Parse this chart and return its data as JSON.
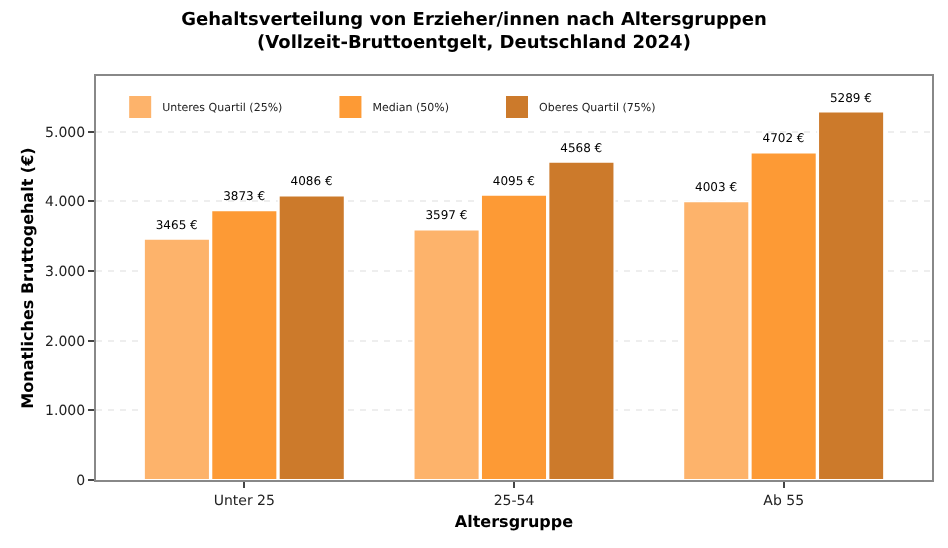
{
  "chart_data": {
    "type": "bar",
    "title": "Gehaltsverteilung von Erzieher/innen nach Altersgruppen\n(Vollzeit-Bruttoentgelt, Deutschland 2024)",
    "xlabel": "Altersgruppe",
    "ylabel": "Monatliches Bruttogehalt (€)",
    "categories": [
      "Unter 25",
      "25-54",
      "Ab 55"
    ],
    "series": [
      {
        "name": "Unteres Quartil (25%)",
        "color": "#fdb36b",
        "values": [
          3465,
          3597,
          4003
        ],
        "value_labels": [
          "3465 €",
          "3597 €",
          "4003 €"
        ]
      },
      {
        "name": "Median (50%)",
        "color": "#fd9a35",
        "values": [
          3873,
          4095,
          4702
        ],
        "value_labels": [
          "3873 €",
          "4095 €",
          "4702 €"
        ]
      },
      {
        "name": "Oberes Quartil (75%)",
        "color": "#cc7a2b",
        "values": [
          4086,
          4568,
          5289
        ],
        "value_labels": [
          "4086 €",
          "4568 €",
          "5289 €"
        ]
      }
    ],
    "ylim": [
      0,
      5800
    ],
    "yticks": [
      {
        "value": 0,
        "label": "0"
      },
      {
        "value": 1000,
        "label": "1.000"
      },
      {
        "value": 2000,
        "label": "2.000"
      },
      {
        "value": 3000,
        "label": "3.000"
      },
      {
        "value": 4000,
        "label": "4.000"
      },
      {
        "value": 5000,
        "label": "5.000"
      }
    ],
    "grid": "y",
    "legend": "top left"
  }
}
